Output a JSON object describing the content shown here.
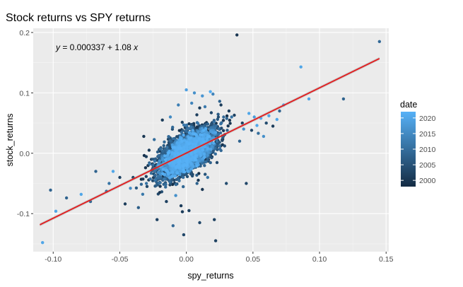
{
  "chart_data": {
    "type": "scatter",
    "title": "Stock returns vs SPY returns",
    "xlabel": "spy_returns",
    "ylabel": "stock_returns",
    "xlim": [
      -0.115,
      0.152
    ],
    "ylim": [
      -0.163,
      0.207
    ],
    "x_ticks": [
      -0.1,
      -0.05,
      0.0,
      0.05,
      0.1,
      0.15
    ],
    "x_tick_labels": [
      "-0.10",
      "-0.05",
      "0.00",
      "0.05",
      "0.10",
      "0.15"
    ],
    "y_ticks": [
      -0.1,
      0.0,
      0.1,
      0.2
    ],
    "y_tick_labels": [
      "-0.1",
      "0.0",
      "0.1",
      "0.2"
    ],
    "grid": true,
    "annotation": {
      "text_y": "y",
      "text_rest": " = 0.000337 + 1.08 ",
      "text_x": "x",
      "position": "top-left"
    },
    "fit_line": {
      "intercept": 0.000337,
      "slope": 1.08,
      "x_range": [
        -0.11,
        0.145
      ],
      "color": "#e31a1c"
    },
    "color_scale": {
      "variable": "date",
      "low_color": "#132b43",
      "high_color": "#56b1f7",
      "range": [
        1998,
        2022
      ],
      "breaks": [
        2000,
        2005,
        2010,
        2015,
        2020
      ],
      "break_labels": [
        "2000",
        "2005",
        "2010",
        "2015",
        "2020"
      ],
      "legend_position": "right"
    },
    "outliers": [
      {
        "x": -0.108,
        "y": -0.148,
        "date": 2020
      },
      {
        "x": -0.098,
        "y": -0.096,
        "date": 2020
      },
      {
        "x": -0.102,
        "y": -0.061,
        "date": 2008
      },
      {
        "x": -0.09,
        "y": -0.074,
        "date": 2008
      },
      {
        "x": -0.079,
        "y": -0.068,
        "date": 2020
      },
      {
        "x": -0.072,
        "y": -0.08,
        "date": 2008
      },
      {
        "x": -0.068,
        "y": -0.03,
        "date": 2008
      },
      {
        "x": -0.06,
        "y": -0.063,
        "date": 2009
      },
      {
        "x": -0.058,
        "y": -0.05,
        "date": 2011
      },
      {
        "x": -0.055,
        "y": -0.03,
        "date": 2020
      },
      {
        "x": -0.05,
        "y": -0.04,
        "date": 2002
      },
      {
        "x": -0.046,
        "y": -0.084,
        "date": 2001
      },
      {
        "x": -0.042,
        "y": -0.058,
        "date": 2015
      },
      {
        "x": -0.04,
        "y": -0.04,
        "date": 2002
      },
      {
        "x": -0.036,
        "y": -0.09,
        "date": 2007
      },
      {
        "x": -0.032,
        "y": 0.028,
        "date": 2000
      },
      {
        "x": -0.03,
        "y": -0.05,
        "date": 2011
      },
      {
        "x": -0.028,
        "y": 0.005,
        "date": 2001
      },
      {
        "x": -0.022,
        "y": -0.11,
        "date": 2002
      },
      {
        "x": -0.02,
        "y": -0.065,
        "date": 2000
      },
      {
        "x": -0.018,
        "y": 0.055,
        "date": 2001
      },
      {
        "x": -0.015,
        "y": -0.08,
        "date": 2002
      },
      {
        "x": -0.012,
        "y": 0.06,
        "date": 2015
      },
      {
        "x": -0.01,
        "y": -0.12,
        "date": 2009
      },
      {
        "x": -0.008,
        "y": -0.07,
        "date": 2016
      },
      {
        "x": -0.006,
        "y": 0.08,
        "date": 2013
      },
      {
        "x": -0.004,
        "y": -0.087,
        "date": 2001
      },
      {
        "x": -0.003,
        "y": -0.097,
        "date": 2001
      },
      {
        "x": -0.002,
        "y": -0.135,
        "date": 2003
      },
      {
        "x": 0.0,
        "y": 0.105,
        "date": 2019
      },
      {
        "x": 0.002,
        "y": -0.095,
        "date": 2002
      },
      {
        "x": 0.004,
        "y": 0.083,
        "date": 2014
      },
      {
        "x": 0.006,
        "y": 0.1,
        "date": 2016
      },
      {
        "x": 0.008,
        "y": -0.05,
        "date": 2008
      },
      {
        "x": 0.01,
        "y": 0.075,
        "date": 2001
      },
      {
        "x": 0.01,
        "y": -0.115,
        "date": 2003
      },
      {
        "x": 0.012,
        "y": -0.06,
        "date": 2000
      },
      {
        "x": 0.012,
        "y": 0.095,
        "date": 2017
      },
      {
        "x": 0.014,
        "y": 0.077,
        "date": 2012
      },
      {
        "x": 0.016,
        "y": -0.04,
        "date": 2011
      },
      {
        "x": 0.018,
        "y": 0.102,
        "date": 2021
      },
      {
        "x": 0.02,
        "y": 0.098,
        "date": 2014
      },
      {
        "x": 0.021,
        "y": -0.11,
        "date": 2002
      },
      {
        "x": 0.022,
        "y": -0.145,
        "date": 2002
      },
      {
        "x": 0.024,
        "y": 0.06,
        "date": 2004
      },
      {
        "x": 0.026,
        "y": 0.08,
        "date": 2001
      },
      {
        "x": 0.028,
        "y": 0.06,
        "date": 2009
      },
      {
        "x": 0.03,
        "y": -0.05,
        "date": 2004
      },
      {
        "x": 0.032,
        "y": 0.07,
        "date": 2001
      },
      {
        "x": 0.034,
        "y": 0.06,
        "date": 2011
      },
      {
        "x": 0.036,
        "y": 0.063,
        "date": 2002
      },
      {
        "x": 0.038,
        "y": 0.196,
        "date": 2000
      },
      {
        "x": 0.04,
        "y": 0.02,
        "date": 2008
      },
      {
        "x": 0.042,
        "y": 0.05,
        "date": 2002
      },
      {
        "x": 0.043,
        "y": 0.04,
        "date": 2016
      },
      {
        "x": 0.045,
        "y": -0.05,
        "date": 2003
      },
      {
        "x": 0.047,
        "y": 0.066,
        "date": 2020
      },
      {
        "x": 0.049,
        "y": 0.038,
        "date": 2003
      },
      {
        "x": 0.051,
        "y": 0.06,
        "date": 2018
      },
      {
        "x": 0.053,
        "y": 0.046,
        "date": 2020
      },
      {
        "x": 0.054,
        "y": 0.033,
        "date": 2010
      },
      {
        "x": 0.056,
        "y": 0.058,
        "date": 2021
      },
      {
        "x": 0.058,
        "y": 0.028,
        "date": 2016
      },
      {
        "x": 0.06,
        "y": 0.05,
        "date": 2004
      },
      {
        "x": 0.062,
        "y": 0.062,
        "date": 2020
      },
      {
        "x": 0.065,
        "y": 0.045,
        "date": 2001
      },
      {
        "x": 0.068,
        "y": 0.056,
        "date": 2020
      },
      {
        "x": 0.07,
        "y": 0.07,
        "date": 2008
      },
      {
        "x": 0.073,
        "y": 0.08,
        "date": 2019
      },
      {
        "x": 0.086,
        "y": 0.143,
        "date": 2020
      },
      {
        "x": 0.092,
        "y": 0.09,
        "date": 2020
      },
      {
        "x": 0.118,
        "y": 0.09,
        "date": 2008
      },
      {
        "x": 0.145,
        "y": 0.185,
        "date": 2009
      }
    ],
    "dense_cloud": {
      "count": 3500,
      "center": [
        0.0005,
        0.001
      ],
      "sd_x": 0.0105,
      "sd_y": 0.02,
      "correlation": 0.62
    }
  }
}
